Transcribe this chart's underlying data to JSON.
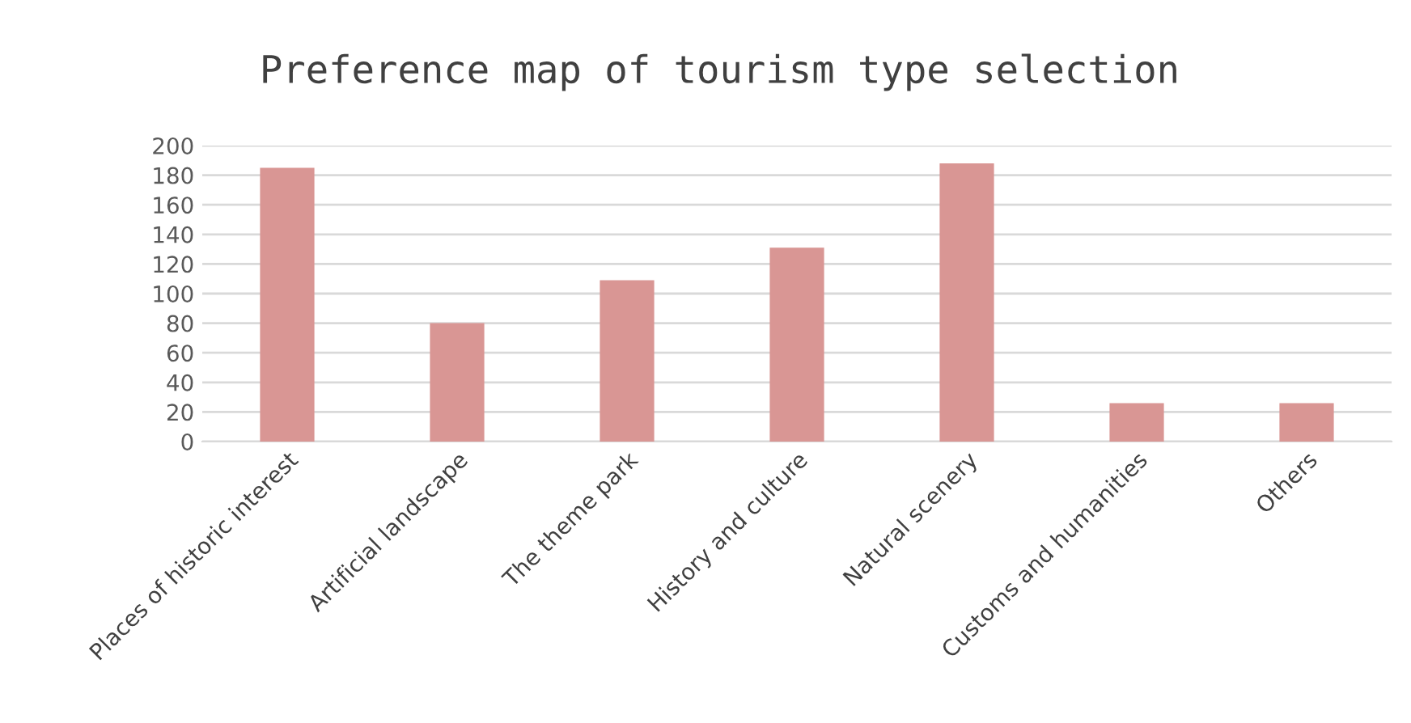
{
  "chart_data": {
    "type": "bar",
    "title": "Preference map of tourism type selection",
    "categories": [
      "Places of historic interest",
      "Artificial landscape",
      "The theme park",
      "History and culture",
      "Natural scenery",
      "Customs and humanities",
      "Others"
    ],
    "values": [
      185,
      80,
      109,
      131,
      188,
      26,
      26
    ],
    "color": "#d99694",
    "ylim": [
      0,
      200
    ],
    "yticks": [
      0,
      20,
      40,
      60,
      80,
      100,
      120,
      140,
      160,
      180,
      200
    ],
    "grid": "y"
  }
}
